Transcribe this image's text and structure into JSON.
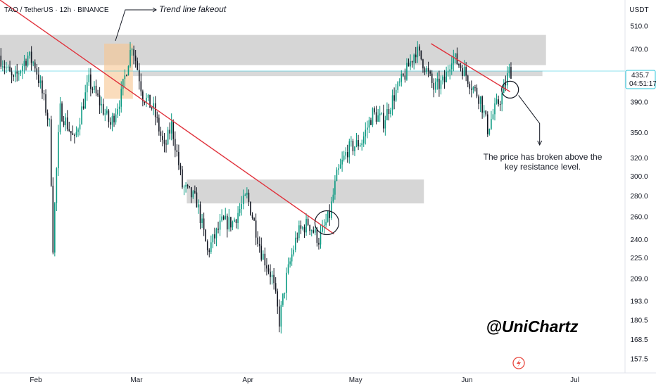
{
  "chart_data": {
    "type": "candlestick",
    "symbol_line": "TAO / TetherUS · 12h · BINANCE",
    "price_currency": "USDT",
    "colors": {
      "up": "#089981",
      "down": "#131722",
      "trendline": "#e0323c",
      "zone": "#cfcfcf",
      "fakeout_zone": "#f6c58f",
      "price_line": "#26c6da",
      "price_label": "#26c6da"
    },
    "price_axis_ticks": [
      510.0,
      470.0,
      390.0,
      350.0,
      320.0,
      300.0,
      280.0,
      260.0,
      240.0,
      225.0,
      209.0,
      193.0,
      180.5,
      168.5,
      157.5
    ],
    "time_axis_ticks": [
      {
        "label": "Feb",
        "date": "2025-02-01"
      },
      {
        "label": "Mar",
        "date": "2025-03-01"
      },
      {
        "label": "Apr",
        "date": "2025-04-01"
      },
      {
        "label": "May",
        "date": "2025-05-01"
      },
      {
        "label": "Jun",
        "date": "2025-06-01"
      },
      {
        "label": "Jul",
        "date": "2025-07-01"
      }
    ],
    "x_range": [
      "2025-01-22",
      "2025-07-15"
    ],
    "y_scale": "log",
    "y_range": [
      150,
      560
    ],
    "last_price": {
      "value": "435.7",
      "countdown": "04:51:17"
    },
    "price_path": [
      [
        "2025-01-22",
        460
      ],
      [
        "2025-01-26",
        420
      ],
      [
        "2025-01-30",
        460
      ],
      [
        "2025-02-01",
        445
      ],
      [
        "2025-02-05",
        360
      ],
      [
        "2025-02-06",
        235
      ],
      [
        "2025-02-08",
        380
      ],
      [
        "2025-02-12",
        340
      ],
      [
        "2025-02-16",
        420
      ],
      [
        "2025-02-20",
        380
      ],
      [
        "2025-02-22",
        360
      ],
      [
        "2025-02-25",
        400
      ],
      [
        "2025-02-28",
        480
      ],
      [
        "2025-03-03",
        400
      ],
      [
        "2025-03-06",
        380
      ],
      [
        "2025-03-09",
        330
      ],
      [
        "2025-03-11",
        360
      ],
      [
        "2025-03-14",
        290
      ],
      [
        "2025-03-18",
        275
      ],
      [
        "2025-03-21",
        230
      ],
      [
        "2025-03-25",
        255
      ],
      [
        "2025-03-28",
        255
      ],
      [
        "2025-04-01",
        280
      ],
      [
        "2025-04-05",
        230
      ],
      [
        "2025-04-08",
        210
      ],
      [
        "2025-04-10",
        180
      ],
      [
        "2025-04-12",
        210
      ],
      [
        "2025-04-15",
        245
      ],
      [
        "2025-04-18",
        255
      ],
      [
        "2025-04-21",
        240
      ],
      [
        "2025-04-24",
        262
      ],
      [
        "2025-04-26",
        300
      ],
      [
        "2025-04-29",
        330
      ],
      [
        "2025-05-03",
        340
      ],
      [
        "2025-05-06",
        375
      ],
      [
        "2025-05-09",
        365
      ],
      [
        "2025-05-12",
        400
      ],
      [
        "2025-05-15",
        430
      ],
      [
        "2025-05-18",
        470
      ],
      [
        "2025-05-20",
        450
      ],
      [
        "2025-05-23",
        410
      ],
      [
        "2025-05-26",
        420
      ],
      [
        "2025-05-28",
        460
      ],
      [
        "2025-05-31",
        440
      ],
      [
        "2025-06-03",
        410
      ],
      [
        "2025-06-05",
        395
      ],
      [
        "2025-06-07",
        355
      ],
      [
        "2025-06-09",
        380
      ],
      [
        "2025-06-11",
        400
      ],
      [
        "2025-06-13",
        435.7
      ]
    ],
    "zones": [
      {
        "name": "upper-resistance",
        "from": "2025-01-22",
        "to": "2025-06-23",
        "low": 445,
        "high": 495
      },
      {
        "name": "mid-resistance",
        "from": "2025-02-28",
        "to": "2025-06-22",
        "low": 428,
        "high": 436
      },
      {
        "name": "lower-zone",
        "from": "2025-03-15",
        "to": "2025-05-20",
        "low": 273,
        "high": 297
      },
      {
        "name": "fakeout-zone",
        "from": "2025-02-20",
        "to": "2025-02-28",
        "low": 395,
        "high": 480
      }
    ],
    "trendlines": [
      {
        "name": "long-trendline",
        "from": [
          "2025-01-22",
          560
        ],
        "to": [
          "2025-04-25",
          245
        ]
      },
      {
        "name": "short-trendline",
        "from": [
          "2025-05-22",
          480
        ],
        "to": [
          "2025-06-13",
          405
        ]
      }
    ],
    "circles": [
      {
        "name": "breakout-circle-1",
        "date": "2025-04-23",
        "price": 255
      },
      {
        "name": "breakout-circle-2",
        "date": "2025-06-13",
        "price": 408
      }
    ],
    "annotations": [
      {
        "name": "fakeout-label",
        "text": "Trend line fakeout"
      },
      {
        "name": "breakout-label",
        "lines": [
          "The price has broken above the",
          "key resistance level."
        ]
      },
      {
        "name": "author-label",
        "text": "@UniChartz"
      }
    ]
  }
}
